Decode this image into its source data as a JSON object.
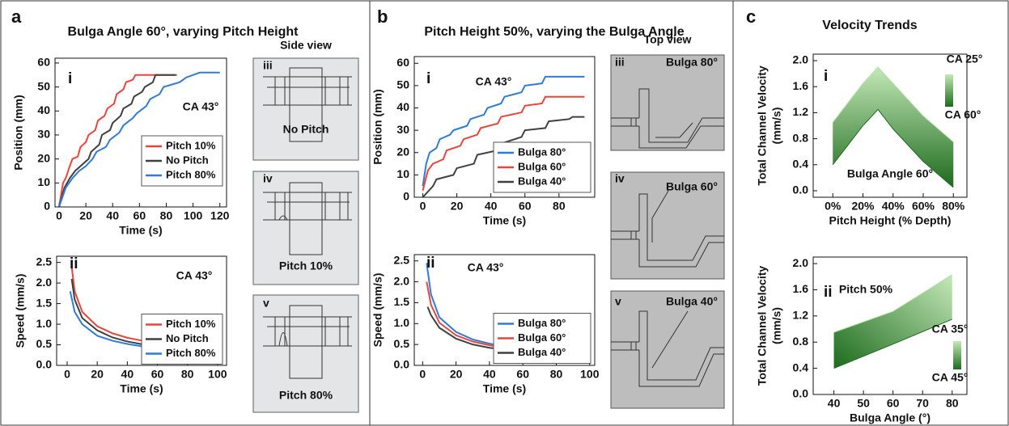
{
  "figure": {
    "panels": [
      {
        "letter": "a",
        "title": "Bulga Angle 60°, varying Pitch Height",
        "view_title": "Side view",
        "images": [
          {
            "numeral": "iii",
            "caption": "No Pitch"
          },
          {
            "numeral": "iv",
            "caption": "Pitch 10%"
          },
          {
            "numeral": "v",
            "caption": "Pitch 80%"
          }
        ]
      },
      {
        "letter": "b",
        "title": "Pitch Height 50%, varying the Bulga Angle",
        "view_title": "Top view",
        "images": [
          {
            "numeral": "iii",
            "caption": "Bulga 80°"
          },
          {
            "numeral": "iv",
            "caption": "Bulga 60°"
          },
          {
            "numeral": "v",
            "caption": "Bulga 40°"
          }
        ]
      },
      {
        "letter": "c",
        "title": "Velocity Trends"
      }
    ]
  },
  "chart_data": [
    {
      "type": "line",
      "label": "i",
      "x_label": "Time (s)",
      "y_label": "Position (mm)",
      "annotation": "CA 43°",
      "legend": "center right",
      "xlim": [
        -3,
        125
      ],
      "xticks": [
        0,
        20,
        40,
        60,
        80,
        100,
        120
      ],
      "ylim": [
        0,
        62
      ],
      "yticks": [
        0,
        10,
        20,
        30,
        40,
        50,
        60
      ],
      "series": [
        {
          "name": "Pitch 10%",
          "color": "#e8463c",
          "x": [
            0,
            3,
            5,
            8,
            10,
            14,
            16,
            20,
            22,
            27,
            29,
            34,
            36,
            41,
            43,
            48,
            50,
            55,
            57,
            88
          ],
          "values": [
            0,
            10,
            12,
            17,
            20,
            21,
            25,
            27,
            30,
            32,
            36,
            38,
            41,
            43,
            47,
            49,
            52,
            53,
            55,
            55
          ]
        },
        {
          "name": "No Pitch",
          "color": "#404040",
          "x": [
            0,
            4,
            8,
            12,
            16,
            22,
            24,
            30,
            32,
            38,
            40,
            46,
            48,
            54,
            56,
            62,
            64,
            70,
            72,
            87
          ],
          "values": [
            0,
            8,
            12,
            15,
            17,
            20,
            23,
            26,
            30,
            32,
            35,
            38,
            41,
            43,
            46,
            48,
            50,
            52,
            55,
            55
          ]
        },
        {
          "name": "Pitch 80%",
          "color": "#2f7bd8",
          "x": [
            0,
            5,
            10,
            15,
            20,
            25,
            28,
            35,
            38,
            45,
            48,
            55,
            58,
            65,
            68,
            75,
            78,
            90,
            95,
            105,
            120
          ],
          "values": [
            0,
            8,
            12,
            15,
            17,
            20,
            23,
            25,
            28,
            31,
            34,
            37,
            39,
            42,
            45,
            47,
            50,
            52,
            54,
            56,
            56
          ]
        }
      ]
    },
    {
      "type": "line",
      "label": "ii",
      "x_label": "Time (s)",
      "y_label": "Speed (mm/s)",
      "annotation": "CA 43°",
      "legend": "center right",
      "xlim": [
        -7,
        106
      ],
      "xticks": [
        0,
        20,
        40,
        60,
        80,
        100
      ],
      "ylim": [
        0,
        2.65
      ],
      "yticks": [
        {
          "value": 0,
          "label": "0.0"
        },
        0.5,
        {
          "value": 1,
          "label": "1.0"
        },
        1.5,
        {
          "value": 2,
          "label": "2.0"
        },
        2.5
      ],
      "series": [
        {
          "name": "Pitch 10%",
          "color": "#e8463c",
          "x": [
            3,
            5,
            10,
            20,
            30,
            40,
            50,
            63
          ],
          "values": [
            2.4,
            1.8,
            1.3,
            0.95,
            0.78,
            0.67,
            0.6,
            0.52
          ]
        },
        {
          "name": "No Pitch",
          "color": "#404040",
          "x": [
            3,
            5,
            10,
            20,
            30,
            40,
            50,
            60,
            70,
            85
          ],
          "values": [
            2.1,
            1.6,
            1.15,
            0.85,
            0.68,
            0.58,
            0.51,
            0.46,
            0.42,
            0.38
          ]
        },
        {
          "name": "Pitch 80%",
          "color": "#2f7bd8",
          "x": [
            2,
            5,
            10,
            20,
            30,
            40,
            50,
            60,
            70,
            80,
            90,
            100
          ],
          "values": [
            1.8,
            1.3,
            1.0,
            0.72,
            0.6,
            0.52,
            0.46,
            0.41,
            0.38,
            0.35,
            0.32,
            0.3
          ]
        }
      ]
    },
    {
      "type": "line",
      "label": "i",
      "x_label": "Time (s)",
      "y_label": "Position (mm)",
      "annotation": "CA 43°",
      "legend": "lower right",
      "xlim": [
        -5,
        101
      ],
      "xticks": [
        0,
        20,
        40,
        60,
        80
      ],
      "ylim": [
        0,
        63
      ],
      "yticks": [
        0,
        10,
        20,
        30,
        40,
        50,
        60
      ],
      "series": [
        {
          "name": "Bulga 80°",
          "color": "#2f7bd8",
          "x": [
            0,
            2,
            4,
            8,
            10,
            16,
            18,
            26,
            28,
            36,
            38,
            46,
            48,
            58,
            60,
            70,
            72,
            90,
            95
          ],
          "values": [
            5,
            15,
            20,
            22,
            26,
            28,
            30,
            32,
            35,
            37,
            40,
            42,
            45,
            47,
            50,
            51,
            54,
            54,
            54
          ]
        },
        {
          "name": "Bulga 60°",
          "color": "#e8463c",
          "x": [
            0,
            3,
            6,
            12,
            14,
            22,
            24,
            32,
            34,
            44,
            46,
            58,
            60,
            70,
            72,
            95
          ],
          "values": [
            3,
            12,
            15,
            17,
            21,
            23,
            26,
            28,
            31,
            33,
            36,
            38,
            41,
            42,
            45,
            45
          ]
        },
        {
          "name": "Bulga 40°",
          "color": "#404040",
          "x": [
            0,
            6,
            8,
            18,
            20,
            30,
            32,
            44,
            46,
            58,
            60,
            72,
            74,
            86,
            88,
            95
          ],
          "values": [
            0,
            5,
            8,
            10,
            13,
            15,
            19,
            21,
            24,
            27,
            30,
            31,
            34,
            35,
            36,
            36
          ]
        }
      ]
    },
    {
      "type": "line",
      "label": "ii",
      "x_label": "Time (s)",
      "y_label": "Speed (mm/s)",
      "annotation": "CA 43°",
      "legend": "center right",
      "xlim": [
        -5,
        103
      ],
      "xticks": [
        0,
        20,
        40,
        60,
        80,
        100
      ],
      "ylim": [
        0,
        2.65
      ],
      "yticks": [
        {
          "value": 0,
          "label": "0.0"
        },
        0.5,
        {
          "value": 1,
          "label": "1.0"
        },
        1.5,
        {
          "value": 2,
          "label": "2.0"
        },
        2.5
      ],
      "series": [
        {
          "name": "Bulga 80°",
          "color": "#2f7bd8",
          "x": [
            2.4,
            5,
            10,
            20,
            30,
            40,
            50,
            60,
            70,
            78
          ],
          "values": [
            2.45,
            1.7,
            1.15,
            0.8,
            0.62,
            0.52,
            0.45,
            0.4,
            0.36,
            0.33
          ]
        },
        {
          "name": "Bulga 60°",
          "color": "#e8463c",
          "x": [
            2.4,
            5,
            10,
            20,
            30,
            40,
            50,
            60,
            70,
            78
          ],
          "values": [
            2.0,
            1.45,
            1.02,
            0.72,
            0.57,
            0.48,
            0.41,
            0.37,
            0.33,
            0.3
          ]
        },
        {
          "name": "Bulga 40°",
          "color": "#404040",
          "x": [
            3,
            5,
            10,
            20,
            30,
            40,
            50,
            60,
            70,
            78
          ],
          "values": [
            1.4,
            1.2,
            0.9,
            0.64,
            0.5,
            0.42,
            0.37,
            0.33,
            0.29,
            0.26
          ]
        }
      ]
    },
    {
      "type": "band",
      "label": "i",
      "x_label": "Pitch Height (% Depth)",
      "y_label": [
        "Total Channel Velocity",
        "(mm/s)"
      ],
      "annotation": "Bulga Angle 60°",
      "xlim": [
        -13,
        89
      ],
      "xticks": [
        {
          "value": 0,
          "label": "0%"
        },
        {
          "value": 20,
          "label": "20%"
        },
        {
          "value": 40,
          "label": "40%"
        },
        {
          "value": 60,
          "label": "60%"
        },
        {
          "value": 80,
          "label": "80%"
        }
      ],
      "ylim": [
        -0.1,
        2.1
      ],
      "yticks": [
        {
          "value": 0,
          "label": "0.0"
        },
        0.4,
        0.8,
        1.2,
        1.6,
        {
          "value": 2,
          "label": "2.0"
        }
      ],
      "series": [
        {
          "name": "CA 25°",
          "color": "#b5e0a8",
          "x": [
            0,
            10,
            20,
            30,
            40,
            50,
            60,
            70,
            80
          ],
          "values": [
            1.05,
            1.35,
            1.65,
            1.9,
            1.65,
            1.4,
            1.15,
            0.95,
            0.75
          ]
        },
        {
          "name": "CA 60°",
          "color": "#1f6b1f",
          "x": [
            0,
            10,
            20,
            30,
            40,
            50,
            60,
            70,
            80
          ],
          "values": [
            0.4,
            0.7,
            1.0,
            1.25,
            0.95,
            0.7,
            0.45,
            0.25,
            0.05
          ]
        }
      ]
    },
    {
      "type": "band",
      "label": "ii",
      "x_label": "Bulga Angle (°)",
      "y_label": [
        "Total Channel Velocity",
        "(mm/s)"
      ],
      "annotation": "Pitch 50%",
      "xlim": [
        33,
        85
      ],
      "xticks": [
        40,
        50,
        60,
        70,
        80
      ],
      "ylim": [
        0,
        2.1
      ],
      "yticks": [
        {
          "value": 0,
          "label": "0.0"
        },
        0.4,
        0.8,
        1.2,
        1.6,
        {
          "value": 2,
          "label": "2.0"
        }
      ],
      "series": [
        {
          "name": "CA 35°",
          "color": "#b5e0a8",
          "x": [
            40,
            60,
            80
          ],
          "values": [
            0.95,
            1.27,
            1.83
          ]
        },
        {
          "name": "CA 45°",
          "color": "#1f6b1f",
          "x": [
            40,
            60,
            80
          ],
          "values": [
            0.4,
            0.77,
            1.15
          ]
        }
      ]
    }
  ]
}
